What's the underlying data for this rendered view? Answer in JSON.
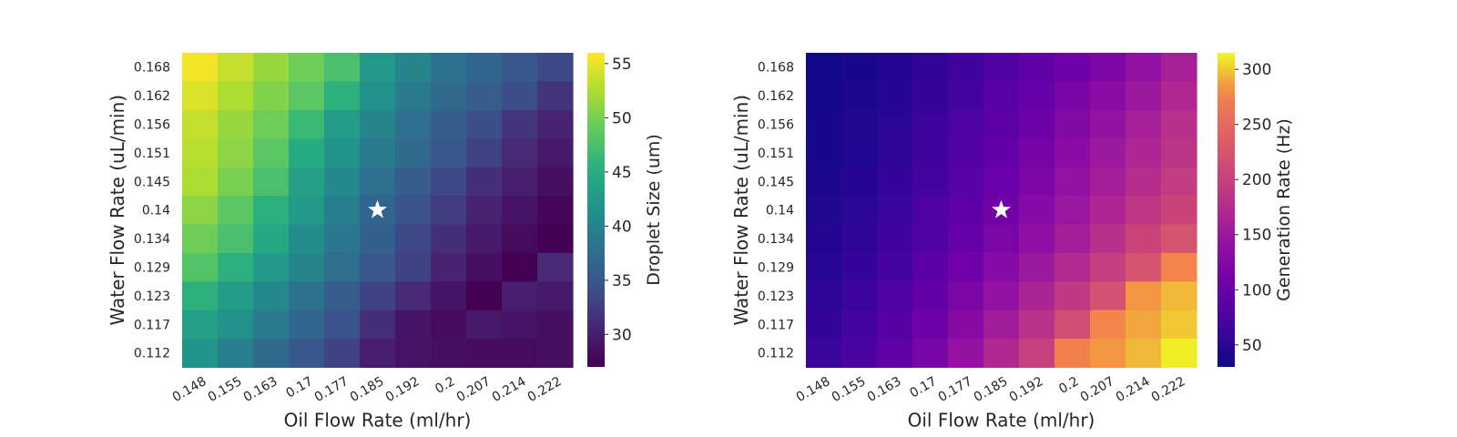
{
  "chart_data": [
    {
      "type": "heatmap",
      "title": "",
      "xlabel": "Oil Flow Rate (ml/hr)",
      "ylabel": "Water Flow Rate (uL/min)",
      "x_ticks": [
        "0.148",
        "0.155",
        "0.163",
        "0.17",
        "0.177",
        "0.185",
        "0.192",
        "0.2",
        "0.207",
        "0.214",
        "0.222"
      ],
      "y_ticks": [
        "0.168",
        "0.162",
        "0.156",
        "0.151",
        "0.145",
        "0.14",
        "0.134",
        "0.129",
        "0.123",
        "0.117",
        "0.112"
      ],
      "colormap": "viridis",
      "colorbar": {
        "label": "Droplet Size (um)",
        "range": [
          27,
          56
        ],
        "ticks": [
          30,
          35,
          40,
          45,
          50,
          55
        ]
      },
      "marker": {
        "symbol": "star",
        "color": "#ffffff",
        "x": "0.185",
        "y": "0.14"
      },
      "values": [
        [
          55.5,
          53.5,
          51.5,
          49.5,
          47.5,
          42.5,
          40.0,
          38.0,
          36.5,
          35.0,
          33.5
        ],
        [
          54.5,
          52.5,
          50.5,
          48.5,
          45.5,
          41.5,
          39.0,
          37.0,
          35.5,
          34.0,
          32.0
        ],
        [
          53.5,
          51.5,
          49.5,
          46.5,
          43.0,
          40.0,
          37.5,
          35.5,
          34.0,
          32.0,
          30.5
        ],
        [
          53.0,
          51.0,
          48.5,
          45.0,
          42.0,
          39.0,
          37.0,
          35.0,
          33.0,
          31.0,
          29.5
        ],
        [
          52.5,
          50.0,
          47.5,
          43.5,
          40.5,
          37.5,
          35.5,
          33.5,
          31.5,
          30.0,
          28.5
        ],
        [
          51.0,
          48.5,
          45.5,
          42.5,
          39.5,
          36.5,
          34.5,
          32.5,
          30.5,
          29.0,
          27.5
        ],
        [
          49.5,
          47.5,
          44.5,
          41.0,
          38.5,
          36.0,
          33.5,
          31.5,
          29.5,
          28.0,
          27.0
        ],
        [
          48.0,
          45.5,
          42.5,
          40.0,
          37.5,
          35.0,
          33.0,
          30.5,
          28.5,
          27.0,
          31.0
        ],
        [
          45.5,
          43.0,
          40.5,
          38.0,
          35.5,
          33.0,
          31.0,
          29.0,
          27.0,
          30.0,
          29.5
        ],
        [
          43.5,
          41.5,
          39.0,
          36.5,
          34.5,
          31.5,
          29.0,
          28.0,
          29.5,
          29.0,
          28.5
        ],
        [
          42.0,
          39.5,
          37.0,
          35.0,
          33.0,
          30.0,
          29.0,
          28.5,
          28.0,
          28.0,
          28.5
        ]
      ]
    },
    {
      "type": "heatmap",
      "title": "",
      "xlabel": "Oil Flow Rate (ml/hr)",
      "ylabel": "Water Flow Rate (uL/min)",
      "x_ticks": [
        "0.148",
        "0.155",
        "0.163",
        "0.17",
        "0.177",
        "0.185",
        "0.192",
        "0.2",
        "0.207",
        "0.214",
        "0.222"
      ],
      "y_ticks": [
        "0.168",
        "0.162",
        "0.156",
        "0.151",
        "0.145",
        "0.14",
        "0.134",
        "0.129",
        "0.123",
        "0.117",
        "0.112"
      ],
      "colormap": "plasma",
      "colorbar": {
        "label": "Generation Rate (Hz)",
        "range": [
          30,
          315
        ],
        "ticks": [
          50,
          100,
          150,
          200,
          250,
          300
        ]
      },
      "marker": {
        "symbol": "star",
        "color": "#ffffff",
        "x": "0.185",
        "y": "0.14"
      },
      "values": [
        [
          33,
          38,
          45,
          55,
          65,
          78,
          92,
          105,
          120,
          140,
          160
        ],
        [
          34,
          40,
          47,
          58,
          70,
          85,
          98,
          115,
          132,
          150,
          170
        ],
        [
          36,
          42,
          50,
          62,
          75,
          90,
          105,
          125,
          142,
          160,
          180
        ],
        [
          38,
          44,
          53,
          65,
          80,
          95,
          112,
          132,
          150,
          168,
          185
        ],
        [
          40,
          47,
          57,
          70,
          85,
          100,
          120,
          140,
          158,
          178,
          195
        ],
        [
          42,
          50,
          60,
          75,
          90,
          108,
          128,
          148,
          168,
          188,
          205
        ],
        [
          45,
          53,
          65,
          80,
          98,
          118,
          138,
          158,
          180,
          205,
          225
        ],
        [
          48,
          57,
          70,
          88,
          108,
          128,
          150,
          172,
          198,
          225,
          280
        ],
        [
          52,
          62,
          77,
          96,
          118,
          140,
          165,
          192,
          220,
          285,
          295
        ],
        [
          56,
          68,
          84,
          105,
          130,
          155,
          182,
          215,
          280,
          290,
          300
        ],
        [
          60,
          74,
          92,
          115,
          142,
          170,
          200,
          275,
          285,
          295,
          312
        ]
      ]
    }
  ]
}
